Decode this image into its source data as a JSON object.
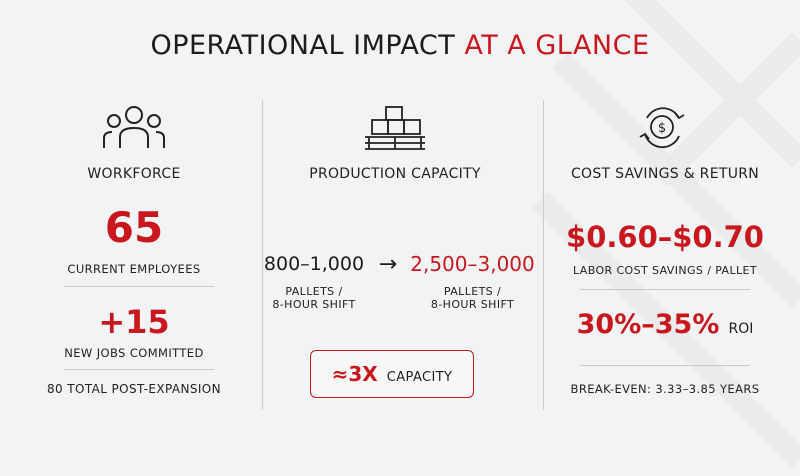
{
  "title": {
    "main": "OPERATIONAL IMPACT",
    "accent": "AT A GLANCE"
  },
  "workforce": {
    "heading": "WORKFORCE",
    "employees_value": "65",
    "employees_label": "CURRENT EMPLOYEES",
    "jobs_value": "+15",
    "jobs_label": "NEW JOBS COMMITTED",
    "total_text": "80 TOTAL POST-EXPANSION"
  },
  "production": {
    "heading": "PRODUCTION CAPACITY",
    "current_value": "800–1,000",
    "current_unit_line1": "PALLETS /",
    "current_unit_line2": "8-HOUR SHIFT",
    "arrow": "→",
    "future_value": "2,500–3,000",
    "future_unit_line1": "PALLETS /",
    "future_unit_line2": "8-HOUR SHIFT",
    "capacity_value": "≈3X",
    "capacity_label": "CAPACITY"
  },
  "cost": {
    "heading": "COST SAVINGS & RETURN",
    "savings_value": "$0.60–$0.70",
    "savings_label": "LABOR COST SAVINGS / PALLET",
    "roi_value": "30%–35%",
    "roi_label": "ROI",
    "breakeven_text": "BREAK-EVEN: 3.33–3.85 YEARS"
  },
  "icons": {
    "workforce": "people-group-icon",
    "production": "pallet-boxes-icon",
    "cost": "dollar-cycle-icon"
  },
  "colors": {
    "accent": "#c8171d",
    "text": "#1c1c1c",
    "background": "#f2f3f4"
  }
}
